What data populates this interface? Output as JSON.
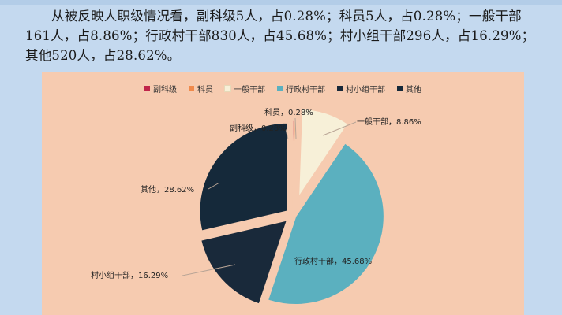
{
  "paragraph": "从被反映人职级情况看，副科级5人，占0.28%；科员5人，占0.28%；一般干部161人，占8.86%；行政村干部830人，占45.68%；村小组干部296人，占16.29%；其他520人，占28.62%。",
  "chart_data": {
    "type": "pie",
    "title": "",
    "legend_position": "top",
    "background": "#f6cbb0",
    "categories": [
      "副科级",
      "科员",
      "一般干部",
      "行政村干部",
      "村小组干部",
      "其他"
    ],
    "values": [
      0.28,
      0.28,
      8.86,
      45.68,
      16.29,
      28.62
    ],
    "colors": [
      "#c0254a",
      "#f08a4b",
      "#f7f0d8",
      "#5bb0bf",
      "#19293a",
      "#15293a"
    ],
    "labels": [
      "副科级，0.28%",
      "科员，0.28%",
      "一般干部，8.86%",
      "行政村干部，45.68%",
      "村小组干部，16.29%",
      "其他，28.62%"
    ]
  }
}
